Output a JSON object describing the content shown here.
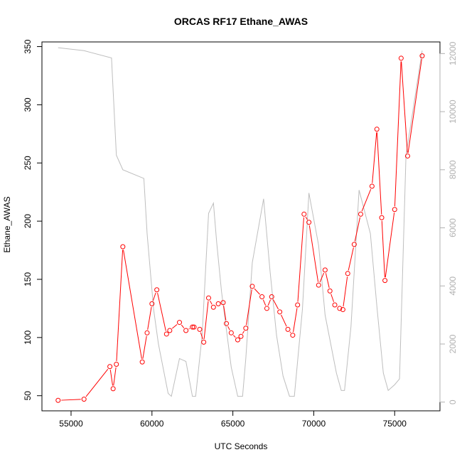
{
  "chart_data": {
    "type": "line",
    "title": "ORCAS RF17 Ethane_AWAS",
    "xlabel": "UTC Seconds",
    "ylabel": "Ethane_AWAS",
    "xlim": [
      53200,
      77800
    ],
    "ylim": [
      37,
      354
    ],
    "xticks": [
      55000,
      60000,
      65000,
      70000,
      75000
    ],
    "yticks": [
      50,
      100,
      150,
      200,
      250,
      300,
      350
    ],
    "y2lim": [
      -300,
      12400
    ],
    "y2ticks": [
      0,
      2000,
      4000,
      6000,
      8000,
      10000,
      12000
    ],
    "y2label": "",
    "grid": false,
    "colors": {
      "primary": "#ff0000",
      "secondary": "#bebebe"
    },
    "series": [
      {
        "axis": "left",
        "marker": "circle",
        "x": [
          54200,
          55800,
          57400,
          57600,
          57800,
          58200,
          59400,
          59700,
          60000,
          60300,
          60900,
          61100,
          61700,
          62100,
          62500,
          62600,
          62950,
          63200,
          63500,
          63800,
          64100,
          64400,
          64600,
          64900,
          65300,
          65500,
          65800,
          66200,
          66800,
          67100,
          67400,
          67900,
          68400,
          68700,
          69000,
          69400,
          69700,
          70300,
          70700,
          71000,
          71300,
          71600,
          71800,
          72100,
          72500,
          72900,
          73600,
          73900,
          74200,
          74400,
          75000,
          75400,
          75800,
          76700
        ],
        "y": [
          46,
          47,
          75,
          56,
          77,
          178,
          79,
          104,
          129,
          141,
          103,
          106,
          113,
          106,
          109,
          109,
          107,
          96,
          134,
          126,
          129,
          130,
          112,
          104,
          98,
          101,
          108,
          144,
          135,
          125,
          135,
          122,
          107,
          102,
          128,
          206,
          199,
          145,
          158,
          140,
          128,
          125,
          124,
          155,
          180,
          206,
          230,
          279,
          203,
          149,
          210,
          340,
          256,
          342
        ]
      },
      {
        "axis": "right",
        "marker": "none",
        "x": [
          54200,
          55800,
          57500,
          57800,
          58200,
          59500,
          59700,
          60100,
          60400,
          61000,
          61200,
          61700,
          62100,
          62500,
          62700,
          63100,
          63500,
          63800,
          64000,
          64300,
          64900,
          65300,
          65600,
          65800,
          66200,
          66900,
          67300,
          67700,
          68100,
          68500,
          68800,
          69300,
          69700,
          70300,
          70700,
          71400,
          71700,
          71900,
          72300,
          72800,
          73500,
          73900,
          74300,
          74600,
          75000,
          75300,
          75700,
          76700
        ],
        "y": [
          12200,
          12100,
          11850,
          8500,
          8000,
          7700,
          5800,
          3200,
          2000,
          300,
          200,
          1500,
          1400,
          200,
          200,
          2300,
          6500,
          6850,
          5500,
          3800,
          1200,
          200,
          200,
          1500,
          4800,
          7000,
          4500,
          2300,
          900,
          200,
          200,
          3200,
          7200,
          5400,
          3000,
          1000,
          400,
          400,
          2600,
          7300,
          5800,
          3300,
          1000,
          400,
          600,
          800,
          8500,
          12100
        ]
      }
    ]
  }
}
